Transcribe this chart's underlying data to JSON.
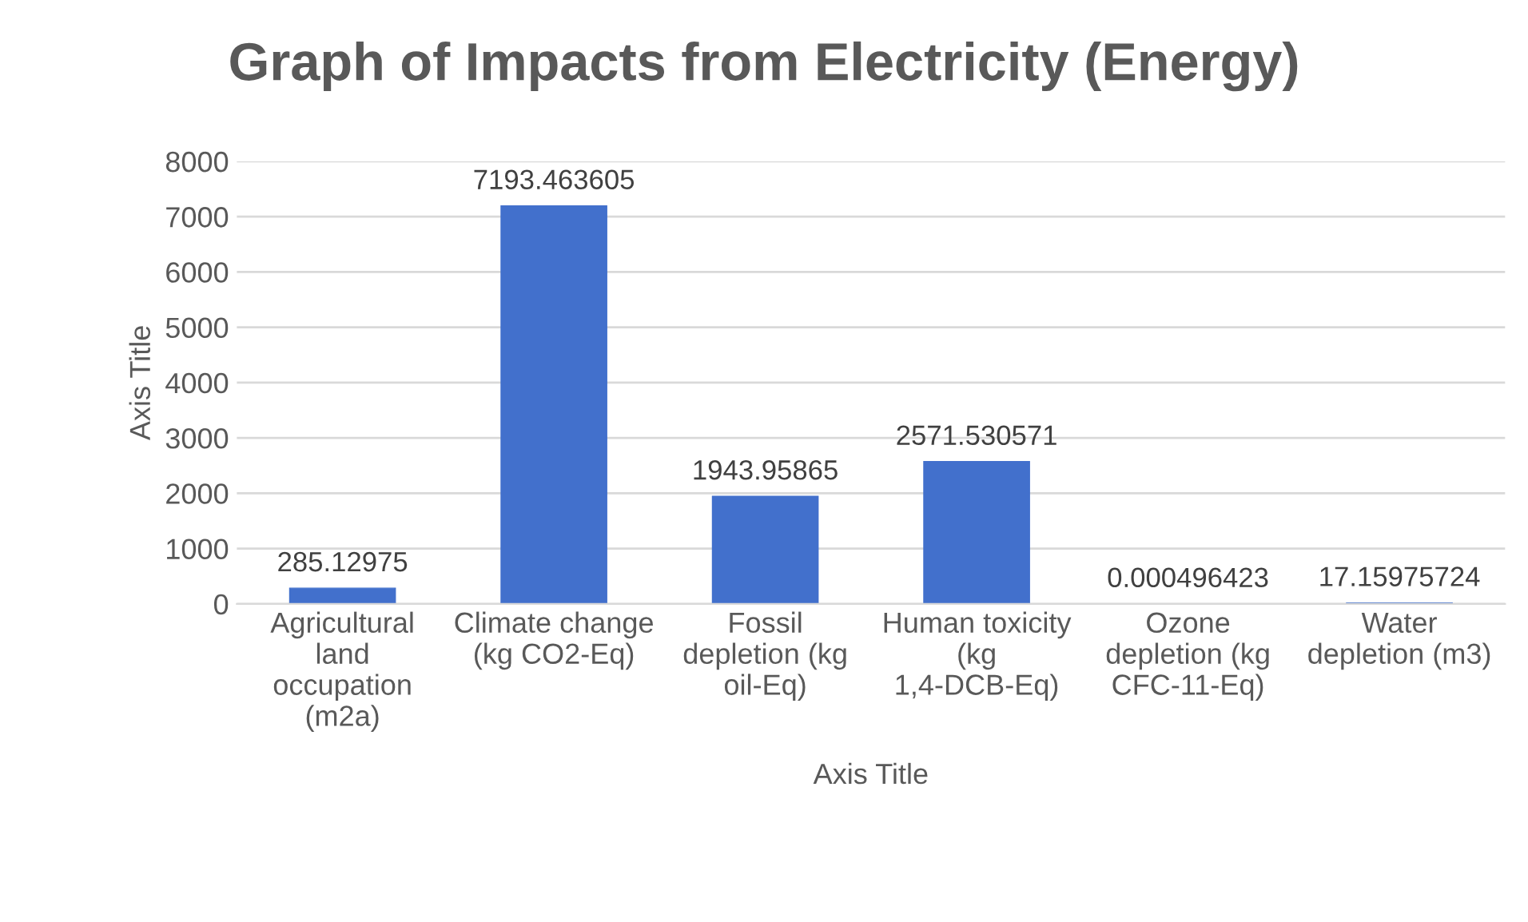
{
  "chart_data": {
    "type": "bar",
    "title": "Graph of Impacts from Electricity (Energy)",
    "xlabel": "Axis Title",
    "ylabel": "Axis Title",
    "categories": [
      "Agricultural land occupation (m2a)",
      "Climate change (kg CO2-Eq)",
      "Fossil depletion (kg oil-Eq)",
      "Human toxicity (kg 1,4-DCB-Eq)",
      "Ozone depletion (kg CFC-11-Eq)",
      "Water depletion (m3)"
    ],
    "values": [
      285.12975,
      7193.463605,
      1943.95865,
      2571.530571,
      0.000496423,
      17.15975724
    ],
    "value_labels": [
      "285.12975",
      "7193.463605",
      "1943.95865",
      "2571.530571",
      "0.000496423",
      "17.15975724"
    ],
    "color": "#4270cc",
    "ylim": [
      0,
      8000
    ],
    "yticks": [
      0,
      1000,
      2000,
      3000,
      4000,
      5000,
      6000,
      7000,
      8000
    ],
    "grid": "y"
  }
}
